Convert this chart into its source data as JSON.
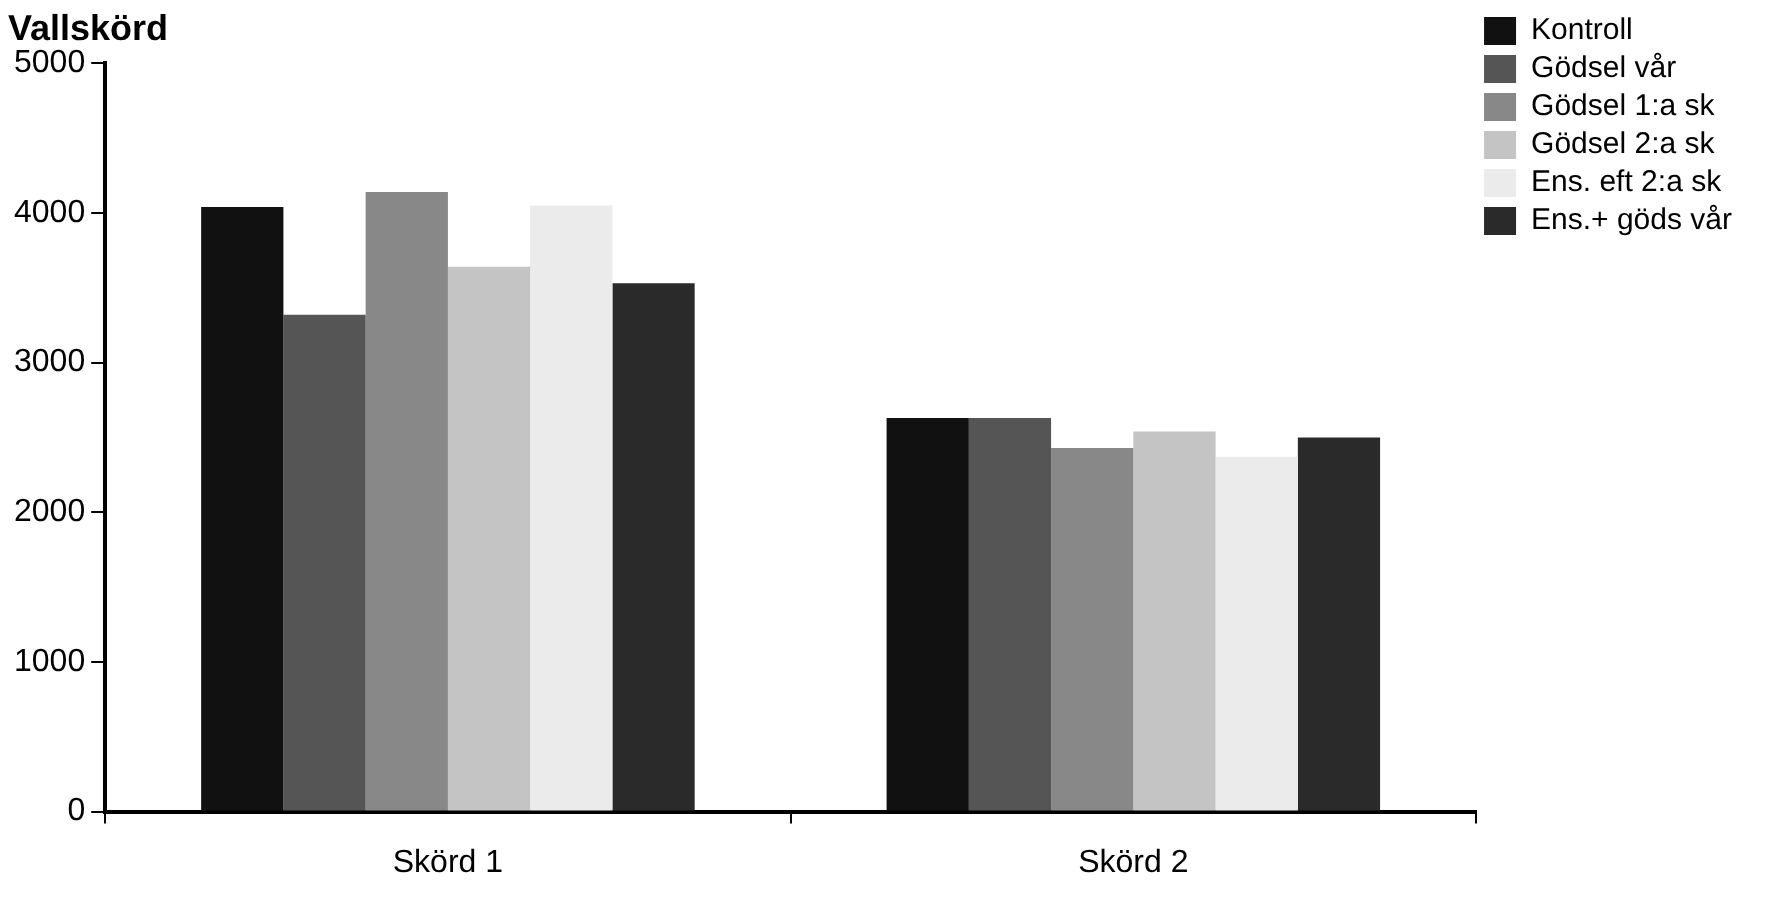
{
  "chart_data": {
    "type": "bar",
    "title": "Vallskörd",
    "categories": [
      "Skörd 1",
      "Skörd 2"
    ],
    "series": [
      {
        "name": "Kontroll",
        "color": "#111111",
        "values": [
          4040,
          2630
        ]
      },
      {
        "name": "Gödsel vår",
        "color": "#555555",
        "values": [
          3320,
          2630
        ]
      },
      {
        "name": "Gödsel 1:a sk",
        "color": "#888888",
        "values": [
          4140,
          2430
        ]
      },
      {
        "name": "Gödsel 2:a sk",
        "color": "#c4c4c4",
        "values": [
          3640,
          2540
        ]
      },
      {
        "name": "Ens. eft 2:a sk",
        "color": "#ebebeb",
        "values": [
          4050,
          2370
        ]
      },
      {
        "name": "Ens.+ göds vår",
        "color": "#2a2a2a",
        "values": [
          3530,
          2500
        ]
      }
    ],
    "ylim": [
      0,
      5000
    ],
    "yticks": [
      0,
      1000,
      2000,
      3000,
      4000,
      5000
    ],
    "grid": false,
    "legend": "top right"
  }
}
